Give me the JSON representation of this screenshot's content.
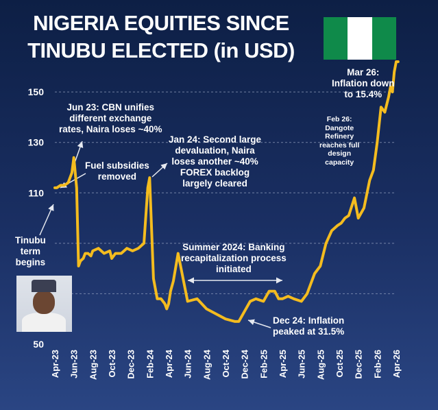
{
  "title_lines": [
    "NIGERIA EQUITIES SINCE",
    "TINUBU ELECTED (in USD)"
  ],
  "flag": {
    "colors": [
      "#0f8a4a",
      "#ffffff",
      "#0f8a4a"
    ]
  },
  "colors": {
    "line": "#f4bc1f",
    "grid": "#9aa6c4",
    "text": "#ffffff"
  },
  "annotations": {
    "tinubu": [
      "Tinubu",
      "term",
      "begins"
    ],
    "fuel": [
      "Fuel subsidies",
      "removed"
    ],
    "jun23": [
      "Jun 23: CBN unifies",
      "different exchange",
      "rates, Naira loses ~40%"
    ],
    "jan24": [
      "Jan 24: Second large",
      "devaluation, Naira",
      "loses another ~40%",
      "FOREX backlog",
      "largely cleared"
    ],
    "summer": [
      "Summer 2024: Banking",
      "recapitalization process",
      "initiated"
    ],
    "dec24": [
      "Dec 24: Inflation",
      "peaked at 31.5%"
    ],
    "feb26": [
      "Feb 26:",
      "Dangote",
      "Refinery",
      "reaches full",
      "design",
      "capacity"
    ],
    "mar26": [
      "Mar 26:",
      "Inflation down",
      "to 15.4%"
    ]
  },
  "chart_data": {
    "type": "line",
    "title": "NIGERIA EQUITIES SINCE TINUBU ELECTED (in USD)",
    "xlabel": "",
    "ylabel": "",
    "ylim": [
      50,
      162
    ],
    "yticks": [
      50,
      70,
      90,
      110,
      130,
      150
    ],
    "ytick_labels": [
      "50",
      "",
      "",
      "110",
      "130",
      "150"
    ],
    "xtick_labels": [
      "Apr-23",
      "Jun-23",
      "Aug-23",
      "Oct-23",
      "Dec-23",
      "Feb-24",
      "Apr-24",
      "Jun-24",
      "Aug-24",
      "Oct-24",
      "Dec-24",
      "Feb-25",
      "Apr-25",
      "Jun-25",
      "Aug-25",
      "Oct-25",
      "Dec-25",
      "Feb-26",
      "Apr-26"
    ],
    "grid": "horizontal",
    "series": [
      {
        "x": [
          0,
          0.1,
          0.3,
          0.5,
          0.7,
          0.9,
          1.0,
          1.15,
          1.25,
          1.35,
          1.5,
          1.6,
          1.75,
          1.9,
          2.0,
          2.3,
          2.6,
          2.9,
          3.0,
          3.2,
          3.5,
          3.8,
          4.1,
          4.4,
          4.7,
          4.9,
          5.0,
          5.2,
          5.4,
          5.6,
          5.8,
          5.9,
          6.0,
          6.1,
          6.25,
          6.5,
          7.0,
          7.5,
          8.0,
          8.5,
          9.0,
          9.5,
          9.7,
          10.0,
          10.3,
          10.6,
          11.0,
          11.3,
          11.6,
          11.8,
          12.0,
          12.3,
          12.6,
          13.0,
          13.3,
          13.5,
          13.7,
          14.0,
          14.3,
          14.6,
          14.9,
          15.1,
          15.3,
          15.5,
          15.8,
          16.0,
          16.3,
          16.6,
          16.8,
          17.0,
          17.2,
          17.4,
          17.6,
          17.7,
          17.8,
          17.9,
          18.0,
          18.1
        ],
        "y": [
          112,
          112,
          113,
          113,
          114,
          118,
          124,
          112,
          81,
          83,
          84,
          86,
          86,
          85,
          87,
          88,
          86,
          87,
          84,
          86,
          86,
          88,
          87,
          88,
          90,
          112,
          116,
          76,
          68,
          68,
          66,
          64,
          66,
          71,
          75,
          86,
          67,
          68,
          64,
          62,
          60,
          59,
          59,
          63,
          67,
          68,
          67,
          71,
          71,
          68,
          68,
          69,
          68,
          67,
          70,
          74,
          78,
          81,
          90,
          95,
          97,
          98,
          100,
          101,
          108,
          100,
          104,
          115,
          119,
          130,
          144,
          142,
          148,
          152,
          150,
          158,
          162,
          162
        ]
      }
    ]
  }
}
